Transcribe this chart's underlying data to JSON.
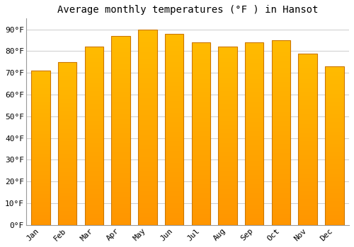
{
  "title": "Average monthly temperatures (°F ) in Hansot",
  "months": [
    "Jan",
    "Feb",
    "Mar",
    "Apr",
    "May",
    "Jun",
    "Jul",
    "Aug",
    "Sep",
    "Oct",
    "Nov",
    "Dec"
  ],
  "values": [
    71,
    75,
    82,
    87,
    90,
    88,
    84,
    82,
    84,
    85,
    79,
    73
  ],
  "ylim": [
    0,
    95
  ],
  "yticks": [
    0,
    10,
    20,
    30,
    40,
    50,
    60,
    70,
    80,
    90
  ],
  "ytick_labels": [
    "0°F",
    "10°F",
    "20°F",
    "30°F",
    "40°F",
    "50°F",
    "60°F",
    "70°F",
    "80°F",
    "90°F"
  ],
  "bar_color_top": "#FFBB00",
  "bar_color_bottom": "#FF9500",
  "bar_edge_color": "#CC7700",
  "background_color": "#FFFFFF",
  "grid_color": "#CCCCCC",
  "title_fontsize": 10,
  "tick_fontsize": 8,
  "font_family": "monospace",
  "bar_width": 0.7
}
